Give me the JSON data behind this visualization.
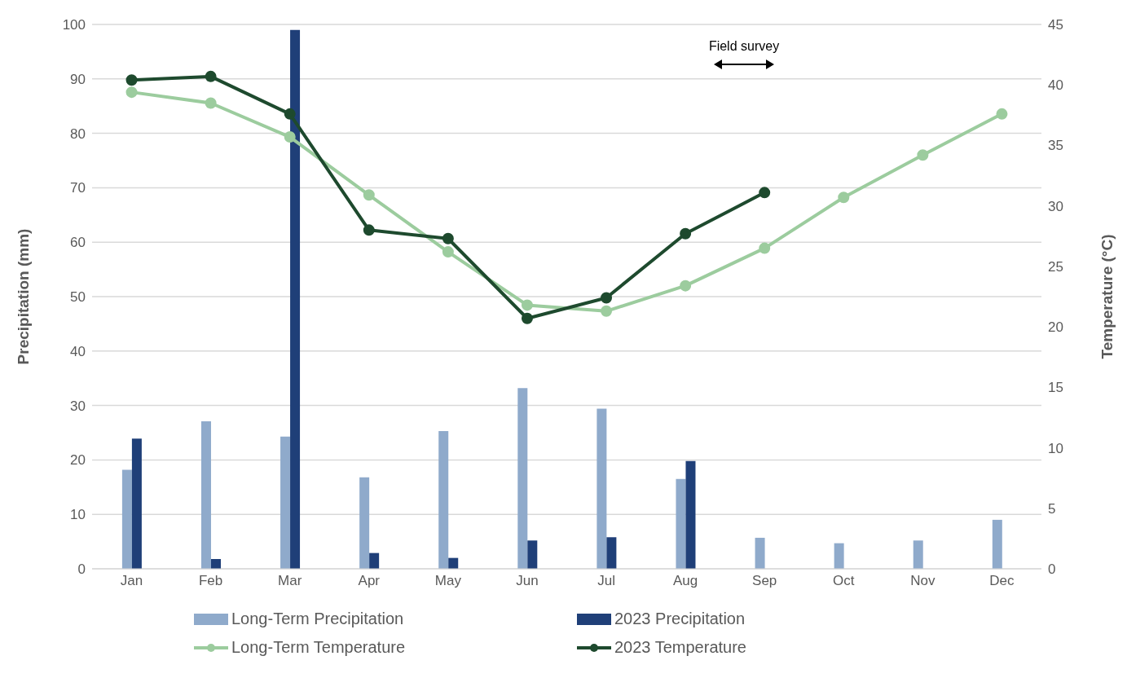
{
  "chart_data": {
    "type": "bar",
    "categories": [
      "Jan",
      "Feb",
      "Mar",
      "Apr",
      "May",
      "Jun",
      "Jul",
      "Aug",
      "Sep",
      "Oct",
      "Nov",
      "Dec"
    ],
    "ylabel": "Precipitation (mm)",
    "y2label": "Temperature (°C)",
    "ylim": [
      0,
      100
    ],
    "yticks": [
      0,
      10,
      20,
      30,
      40,
      50,
      60,
      70,
      80,
      90,
      100
    ],
    "y2lim": [
      0,
      45
    ],
    "y2ticks": [
      0,
      5,
      10,
      15,
      20,
      25,
      30,
      35,
      40,
      45
    ],
    "grid": "y",
    "legend": "bottom",
    "marker": "circle",
    "line_style": "solid",
    "annotations": [
      "Field survey"
    ],
    "series": [
      {
        "name": "Long-Term Precipitation",
        "color": "#8faacb",
        "values": [
          18.2,
          27.1,
          24.3,
          16.8,
          25.3,
          33.2,
          29.4,
          16.5,
          5.7,
          4.7,
          5.2,
          9.0
        ]
      },
      {
        "name": "2023 Precipitation",
        "color": "#1f3f78",
        "values": [
          23.9,
          1.8,
          99,
          2.9,
          2.0,
          5.2,
          5.8,
          19.8,
          null,
          null,
          null,
          null
        ]
      },
      {
        "name": "Long-Term Temperature",
        "type": "line",
        "axis": "y2",
        "color": "#9ccc9e",
        "values": [
          39.4,
          38.5,
          35.7,
          30.9,
          26.2,
          21.8,
          21.3,
          23.4,
          26.5,
          30.7,
          34.2,
          37.6
        ]
      },
      {
        "name": "2023 Temperature",
        "type": "line",
        "axis": "y2",
        "color": "#1e4a2e",
        "values": [
          40.4,
          40.7,
          37.6,
          28.0,
          27.3,
          20.7,
          22.4,
          27.7,
          31.1,
          null,
          null,
          null
        ]
      }
    ]
  }
}
